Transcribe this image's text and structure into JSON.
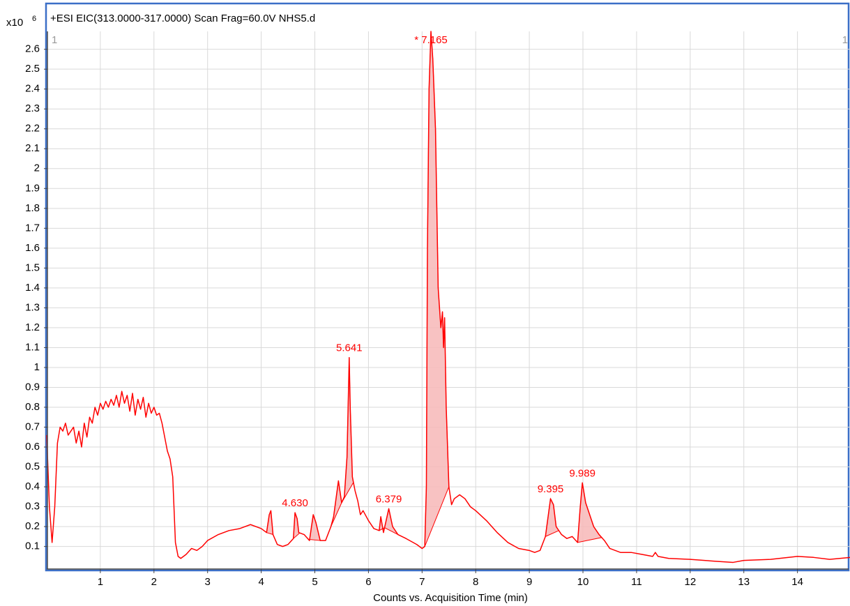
{
  "chart_data": {
    "type": "line",
    "title": "+ESI EIC(313.0000-317.0000) Scan Frag=60.0V NHS5.d",
    "y_multiplier": "x10",
    "y_exponent": "6",
    "x_label": "Counts vs. Acquisition Time (min)",
    "annotations": [
      "1",
      "1"
    ],
    "color": "#ff0000",
    "fill_color": "#f7b7b7",
    "grid": true,
    "xlim": [
      0,
      14.98
    ],
    "ylim": [
      -0.01,
      2.69
    ],
    "xticks": [
      1,
      2,
      3,
      4,
      5,
      6,
      7,
      8,
      9,
      10,
      11,
      12,
      13,
      14
    ],
    "yticks": [
      0.1,
      0.2,
      0.3,
      0.4,
      0.5,
      0.6,
      0.7,
      0.8,
      0.9,
      1,
      1.1,
      1.2,
      1.3,
      1.4,
      1.5,
      1.6,
      1.7,
      1.8,
      1.9,
      2,
      2.1,
      2.2,
      2.3,
      2.4,
      2.5,
      2.6
    ],
    "x": [
      0.0,
      0.05,
      0.1,
      0.15,
      0.2,
      0.25,
      0.3,
      0.35,
      0.4,
      0.5,
      0.55,
      0.6,
      0.65,
      0.7,
      0.75,
      0.8,
      0.85,
      0.9,
      0.95,
      1.0,
      1.05,
      1.1,
      1.15,
      1.2,
      1.25,
      1.3,
      1.35,
      1.4,
      1.45,
      1.5,
      1.55,
      1.6,
      1.65,
      1.7,
      1.75,
      1.8,
      1.85,
      1.9,
      1.95,
      2.0,
      2.05,
      2.1,
      2.15,
      2.2,
      2.25,
      2.3,
      2.35,
      2.4,
      2.45,
      2.5,
      2.6,
      2.7,
      2.8,
      2.9,
      3.0,
      3.2,
      3.4,
      3.6,
      3.8,
      4.0,
      4.1,
      4.15,
      4.18,
      4.22,
      4.3,
      4.4,
      4.5,
      4.6,
      4.63,
      4.67,
      4.7,
      4.8,
      4.9,
      4.97,
      5.02,
      5.1,
      5.2,
      5.3,
      5.35,
      5.44,
      5.5,
      5.55,
      5.6,
      5.641,
      5.66,
      5.7,
      5.75,
      5.8,
      5.85,
      5.9,
      6.0,
      6.1,
      6.2,
      6.23,
      6.28,
      6.379,
      6.45,
      6.55,
      6.7,
      6.9,
      7.0,
      7.05,
      7.08,
      7.1,
      7.13,
      7.165,
      7.2,
      7.25,
      7.3,
      7.35,
      7.38,
      7.4,
      7.42,
      7.45,
      7.5,
      7.55,
      7.6,
      7.7,
      7.8,
      7.9,
      8.0,
      8.2,
      8.4,
      8.6,
      8.8,
      9.0,
      9.1,
      9.2,
      9.3,
      9.395,
      9.45,
      9.5,
      9.6,
      9.7,
      9.8,
      9.9,
      9.95,
      9.989,
      10.05,
      10.1,
      10.2,
      10.3,
      10.4,
      10.5,
      10.7,
      10.9,
      11.1,
      11.3,
      11.35,
      11.4,
      11.6,
      12.0,
      12.5,
      12.8,
      13.0,
      13.5,
      14.0,
      14.3,
      14.6,
      14.98
    ],
    "values": [
      0.66,
      0.3,
      0.12,
      0.3,
      0.62,
      0.7,
      0.68,
      0.72,
      0.66,
      0.7,
      0.62,
      0.68,
      0.6,
      0.72,
      0.65,
      0.75,
      0.72,
      0.8,
      0.76,
      0.82,
      0.79,
      0.83,
      0.8,
      0.84,
      0.81,
      0.86,
      0.8,
      0.88,
      0.82,
      0.86,
      0.78,
      0.87,
      0.76,
      0.84,
      0.79,
      0.85,
      0.75,
      0.82,
      0.77,
      0.8,
      0.76,
      0.77,
      0.72,
      0.65,
      0.58,
      0.54,
      0.45,
      0.12,
      0.05,
      0.04,
      0.06,
      0.09,
      0.08,
      0.1,
      0.13,
      0.16,
      0.18,
      0.19,
      0.21,
      0.19,
      0.17,
      0.26,
      0.28,
      0.16,
      0.11,
      0.1,
      0.11,
      0.14,
      0.27,
      0.24,
      0.17,
      0.16,
      0.13,
      0.26,
      0.22,
      0.13,
      0.13,
      0.2,
      0.25,
      0.43,
      0.32,
      0.35,
      0.55,
      1.05,
      0.8,
      0.45,
      0.38,
      0.33,
      0.26,
      0.28,
      0.23,
      0.19,
      0.18,
      0.25,
      0.17,
      0.29,
      0.2,
      0.16,
      0.14,
      0.11,
      0.09,
      0.1,
      0.4,
      1.6,
      2.4,
      2.69,
      2.55,
      2.2,
      1.4,
      1.2,
      1.28,
      1.1,
      1.25,
      0.8,
      0.4,
      0.31,
      0.34,
      0.36,
      0.34,
      0.3,
      0.28,
      0.23,
      0.17,
      0.12,
      0.09,
      0.08,
      0.07,
      0.08,
      0.15,
      0.34,
      0.31,
      0.2,
      0.16,
      0.14,
      0.15,
      0.12,
      0.3,
      0.42,
      0.32,
      0.28,
      0.2,
      0.16,
      0.13,
      0.09,
      0.07,
      0.07,
      0.06,
      0.05,
      0.07,
      0.05,
      0.04,
      0.035,
      0.025,
      0.02,
      0.03,
      0.035,
      0.05,
      0.045,
      0.035,
      0.045
    ],
    "integrations": [
      [
        4.1,
        4.22
      ],
      [
        4.6,
        4.72
      ],
      [
        4.88,
        5.1
      ],
      [
        5.3,
        5.5
      ],
      [
        5.5,
        5.72
      ],
      [
        6.2,
        6.3
      ],
      [
        6.3,
        6.55
      ],
      [
        7.05,
        7.5
      ],
      [
        9.3,
        9.55
      ],
      [
        9.9,
        10.35
      ]
    ],
    "peak_labels": [
      {
        "label": "4.630",
        "x": 4.63,
        "y": 0.27
      },
      {
        "label": "5.641",
        "x": 5.641,
        "y": 1.05
      },
      {
        "label": "6.379",
        "x": 6.379,
        "y": 0.29
      },
      {
        "label": "* 7.165",
        "x": 7.165,
        "y": 2.69
      },
      {
        "label": "9.395",
        "x": 9.395,
        "y": 0.34
      },
      {
        "label": "9.989",
        "x": 9.989,
        "y": 0.42
      }
    ]
  }
}
